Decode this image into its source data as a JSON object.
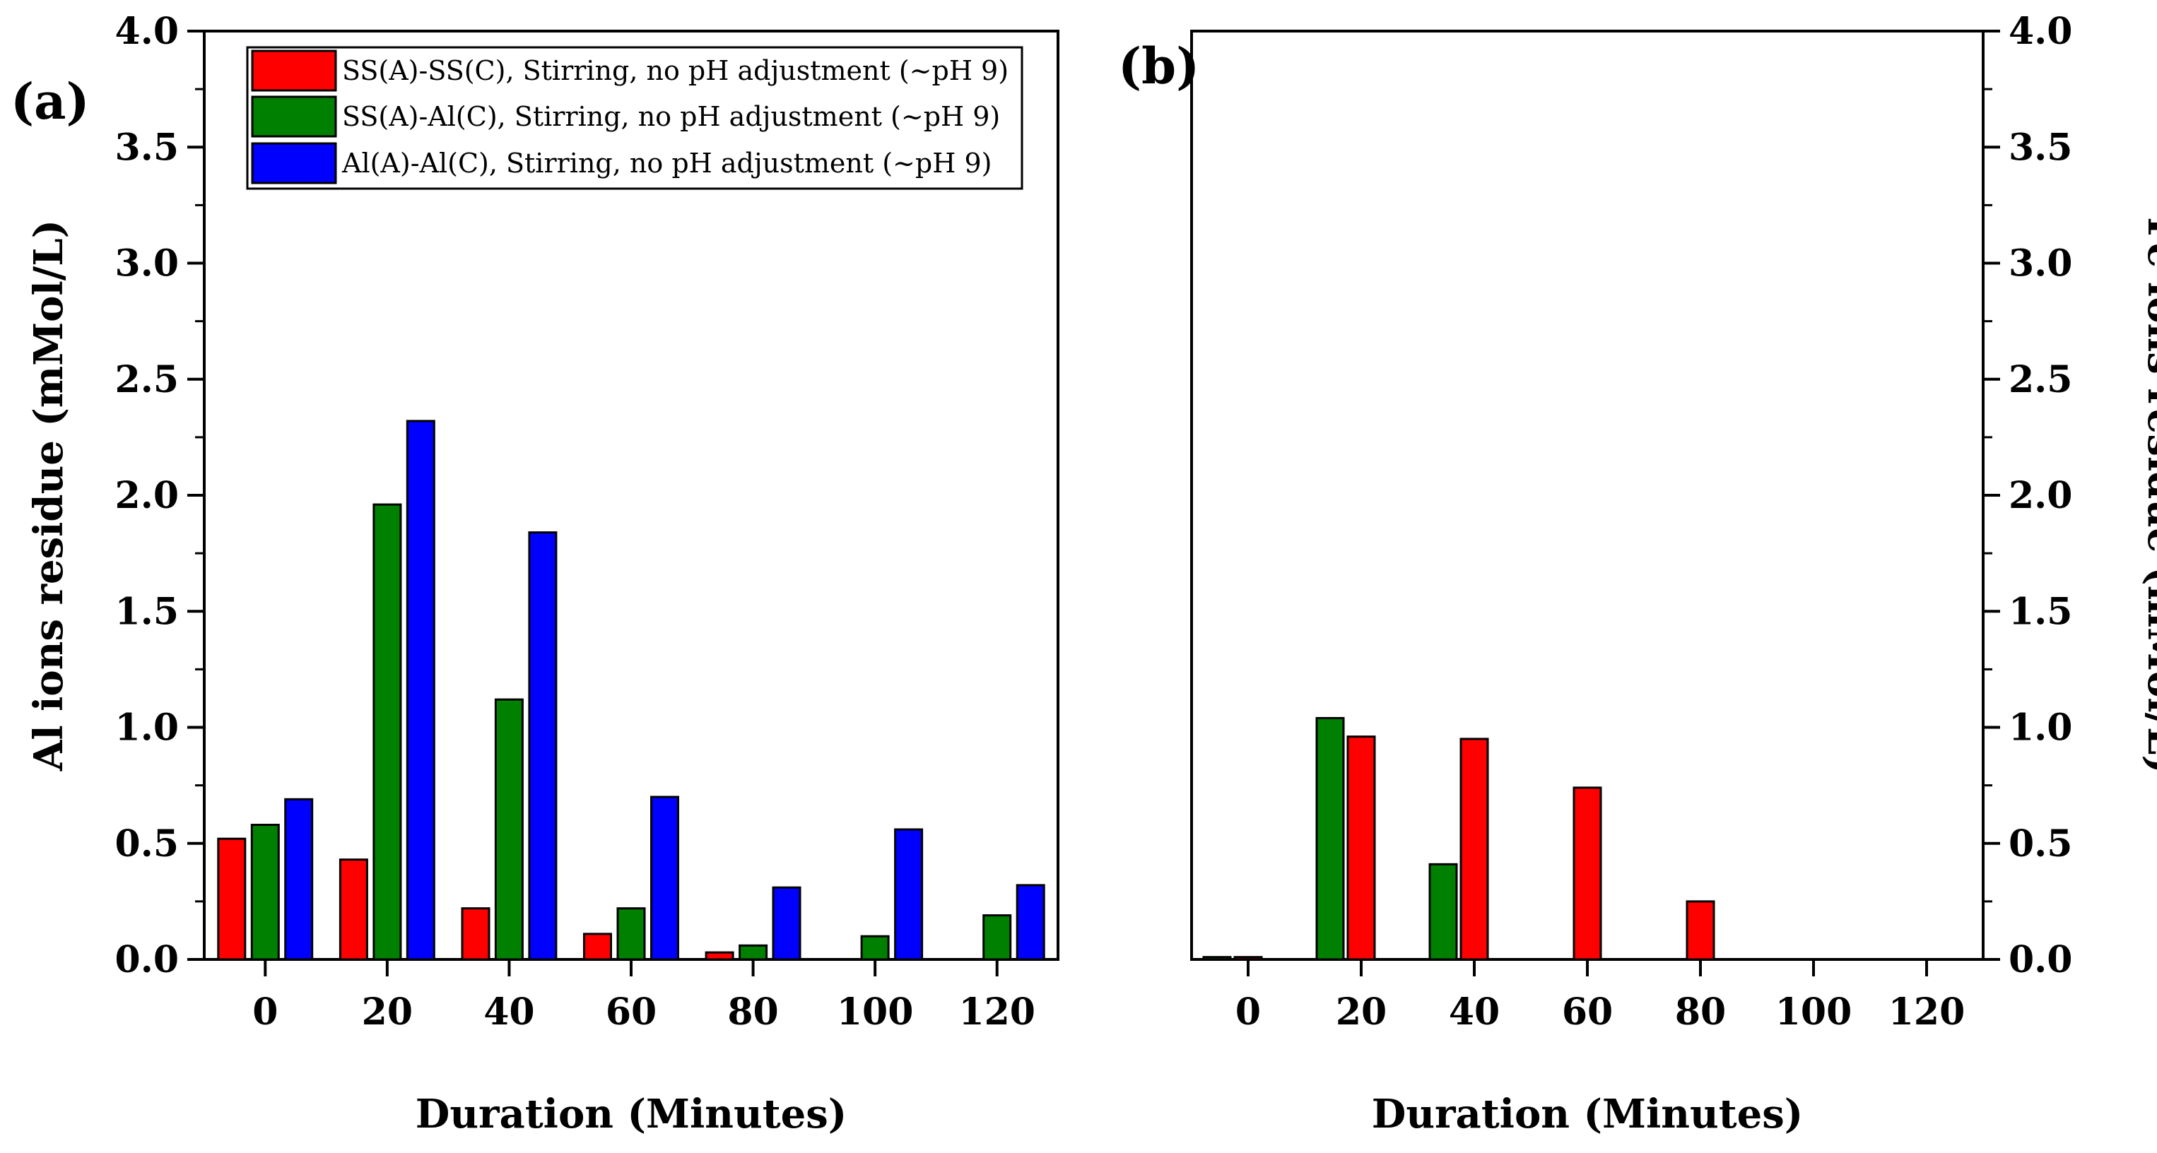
{
  "chart_data": [
    {
      "panel": "(a)",
      "type": "bar",
      "categories": [
        "0",
        "20",
        "40",
        "60",
        "80",
        "100",
        "120"
      ],
      "x_values": [
        0,
        20,
        40,
        60,
        80,
        100,
        120
      ],
      "xlabel": "Duration (Minutes)",
      "ylabel": "Al ions residue (mMol/L)",
      "xlim": [
        -10,
        130
      ],
      "ylim": [
        0,
        4.0
      ],
      "yticks": [
        "0.0",
        "0.5",
        "1.0",
        "1.5",
        "2.0",
        "2.5",
        "3.0",
        "3.5",
        "4.0"
      ],
      "ytick_values": [
        0,
        0.5,
        1.0,
        1.5,
        2.0,
        2.5,
        3.0,
        3.5,
        4.0
      ],
      "legend_position": "top",
      "series": [
        {
          "name": "SS(A)-SS(C), Stirring, no pH adjustment (~pH 9)",
          "color": "#ff0000",
          "offset": -5.5,
          "values": [
            0.52,
            0.43,
            0.22,
            0.11,
            0.03,
            0,
            0
          ]
        },
        {
          "name": "SS(A)-Al(C), Stirring, no pH adjustment (~pH 9)",
          "color": "#008000",
          "offset": 0,
          "values": [
            0.58,
            1.96,
            1.12,
            0.22,
            0.06,
            0.1,
            0.19
          ]
        },
        {
          "name": "Al(A)-Al(C), Stirring, no pH adjustment (~pH 9)",
          "color": "#0000ff",
          "offset": 5.5,
          "values": [
            0.69,
            2.32,
            1.84,
            0.7,
            0.31,
            0.56,
            0.32
          ]
        }
      ]
    },
    {
      "panel": "(b)",
      "type": "bar",
      "categories": [
        "0",
        "20",
        "40",
        "60",
        "80",
        "100",
        "120"
      ],
      "x_values": [
        0,
        20,
        40,
        60,
        80,
        100,
        120
      ],
      "xlabel": "Duration (Minutes)",
      "ylabel": "Fe ions residue (mMol/L)",
      "xlim": [
        -10,
        130
      ],
      "ylim": [
        0,
        4.0
      ],
      "yticks": [
        "0.0",
        "0.5",
        "1.0",
        "1.5",
        "2.0",
        "2.5",
        "3.0",
        "3.5",
        "4.0"
      ],
      "ytick_values": [
        0,
        0.5,
        1.0,
        1.5,
        2.0,
        2.5,
        3.0,
        3.5,
        4.0
      ],
      "series": [
        {
          "name": "SS(A)-Al(C)",
          "color": "#008000",
          "offset": -5.5,
          "values": [
            0.01,
            1.04,
            0.41,
            0,
            0,
            0,
            0
          ]
        },
        {
          "name": "SS(A)-SS(C)",
          "color": "#ff0000",
          "offset": 0,
          "values": [
            0.01,
            0.96,
            0.95,
            0.74,
            0.25,
            0,
            0
          ]
        }
      ]
    }
  ]
}
